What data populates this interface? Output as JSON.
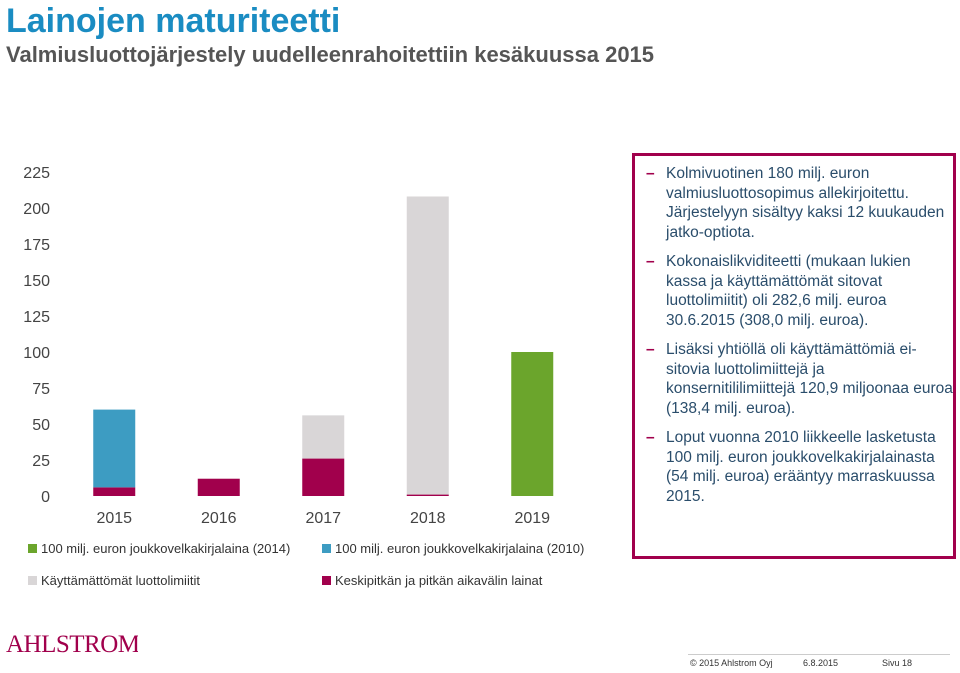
{
  "header": {
    "title": "Lainojen maturiteetti",
    "subtitle": "Valmiusluottojärjestely uudelleenrahoitettiin kesäkuussa 2015"
  },
  "chart_data": {
    "type": "bar",
    "stacked": true,
    "categories": [
      "2015",
      "2016",
      "2017",
      "2018",
      "2019"
    ],
    "yticks": [
      "0",
      "25",
      "50",
      "75",
      "100",
      "125",
      "150",
      "175",
      "200",
      "225"
    ],
    "ylim": [
      0,
      225
    ],
    "series": [
      {
        "name": "Keskipitkän ja pitkän aikavälin lainat",
        "color": "#a1004c",
        "values": [
          6,
          12,
          26,
          1,
          0
        ]
      },
      {
        "name": "100 milj. euron joukkovelkakirjalaina (2014)",
        "color": "#6ba52c",
        "values": [
          0,
          0,
          0,
          0,
          100
        ]
      },
      {
        "name": "100 milj. euron joukkovelkakirjalaina (2010)",
        "color": "#3d9cc2",
        "values": [
          54,
          0,
          0,
          0,
          0
        ]
      },
      {
        "name": "Käyttämättömät luottolimiitit",
        "color": "#d9d6d7",
        "values": [
          0,
          0,
          30,
          207,
          0
        ]
      }
    ],
    "legend": [
      {
        "label": "100 milj. euron joukkovelkakirjalaina (2014)",
        "color": "#6ba52c"
      },
      {
        "label": "100 milj. euron joukkovelkakirjalaina (2010)",
        "color": "#3d9cc2"
      },
      {
        "label": "Käyttämättömät luottolimiitit",
        "color": "#d9d6d7"
      },
      {
        "label": "Keskipitkän ja pitkän aikavälin lainat",
        "color": "#a1004c"
      }
    ],
    "legend_position": "bottom"
  },
  "bullets": [
    "Kolmivuotinen 180 milj. euron valmiusluottosopimus allekirjoitettu. Järjestelyyn sisältyy kaksi 12 kuukauden jatko-optiota.",
    "Kokonaislikviditeetti (mukaan lukien kassa ja käyttämättömät sitovat luottolimiitit) oli 282,6 milj. euroa 30.6.2015 (308,0 milj. euroa).",
    "Lisäksi yhtiöllä oli käyttämättömiä ei-sitovia luottolimiittejä ja konsernitililimiittejä 120,9 miljoonaa euroa (138,4 milj. euroa).",
    "Loput vuonna 2010 liikkeelle lasketusta 100 milj. euron joukkovelkakirjalainasta (54 milj. euroa) erääntyy marraskuussa 2015."
  ],
  "logo_text": "AHLSTROM",
  "footer": {
    "copyright": "© 2015 Ahlstrom Oyj",
    "date": "6.8.2015",
    "page": "Sivu 18"
  },
  "colors": {
    "title": "#1a8cc2",
    "accent": "#a1004c",
    "bullet_text": "#2a4d6b"
  }
}
